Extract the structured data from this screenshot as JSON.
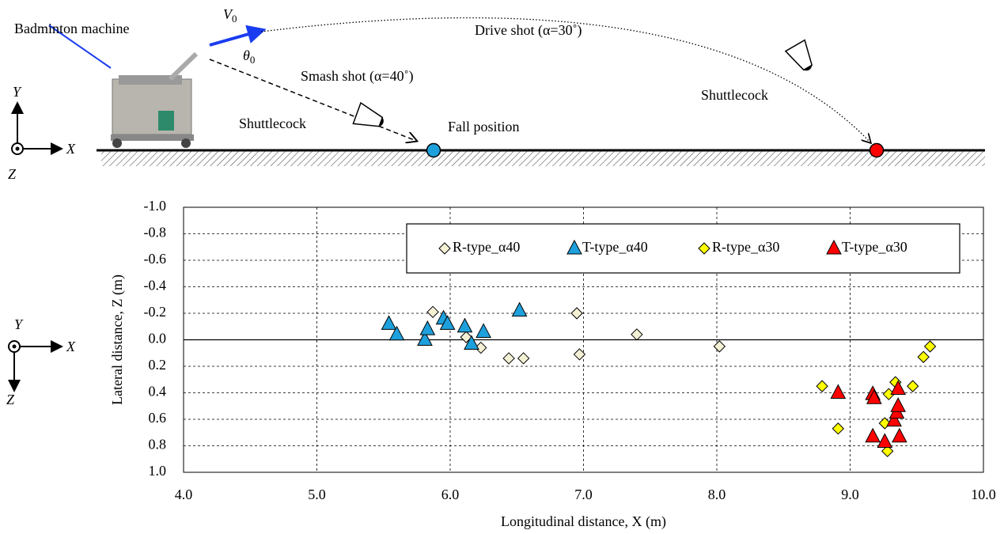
{
  "diagram": {
    "machine_label": "Badminton machine",
    "velocity": {
      "symbol": "V",
      "subscript": "0"
    },
    "angle": {
      "symbol": "θ",
      "subscript": "0"
    },
    "drive_shot": "Drive shot (α=30˚)",
    "smash_shot": "Smash shot (α=40˚)",
    "shuttlecock_near": "Shuttlecock",
    "shuttlecock_far": "Shuttlecock",
    "fall_position": "Fall position",
    "side_axes": {
      "y": "Y",
      "x": "X",
      "z": "Z"
    },
    "top_axes": {
      "y": "Y",
      "x": "X",
      "z": "Z"
    }
  },
  "chart_data": {
    "type": "scatter",
    "xlabel": "Longitudinal distance, X (m)",
    "ylabel": "Lateral distance, Z (m)",
    "xlim": [
      4.0,
      10.0
    ],
    "ylim": [
      -1.0,
      1.0
    ],
    "y_inverted": true,
    "grid": true,
    "legend": "top-right",
    "xticks": [
      {
        "value": 4,
        "label": "4.0"
      },
      {
        "value": 5,
        "label": "5.0"
      },
      {
        "value": 6,
        "label": "6.0"
      },
      {
        "value": 7,
        "label": "7.0"
      },
      {
        "value": 8,
        "label": "8.0"
      },
      {
        "value": 9,
        "label": "9.0"
      },
      {
        "value": 10,
        "label": "10.0"
      }
    ],
    "yticks": [
      {
        "value": -1,
        "label": "-1.0"
      },
      {
        "value": -0.8,
        "label": "-0.8"
      },
      {
        "value": -0.6,
        "label": "-0.6"
      },
      {
        "value": -0.4,
        "label": "-0.4"
      },
      {
        "value": -0.2,
        "label": "-0.2"
      },
      {
        "value": 0,
        "label": "0.0"
      },
      {
        "value": 0.2,
        "label": "0.2"
      },
      {
        "value": 0.4,
        "label": "0.4"
      },
      {
        "value": 0.6,
        "label": "0.6"
      },
      {
        "value": 0.8,
        "label": "0.8"
      },
      {
        "value": 1,
        "label": "1.0"
      }
    ],
    "series": [
      {
        "name": "R-type_α40",
        "color": "#f3f0d4",
        "marker": "diamond",
        "x": [
          5.87,
          6.12,
          6.23,
          6.44,
          6.55,
          6.95,
          6.97,
          7.4,
          8.02
        ],
        "y": [
          -0.21,
          -0.02,
          0.06,
          0.14,
          0.14,
          -0.2,
          0.11,
          -0.04,
          0.05
        ]
      },
      {
        "name": "T-type_α40",
        "color": "#1ea0dc",
        "marker": "triangle",
        "x": [
          5.54,
          5.6,
          5.81,
          5.83,
          5.95,
          5.98,
          6.11,
          6.16,
          6.25,
          6.52
        ],
        "y": [
          -0.12,
          -0.04,
          0.0,
          -0.08,
          -0.16,
          -0.12,
          -0.1,
          0.03,
          -0.06,
          -0.22
        ]
      },
      {
        "name": "R-type_α30",
        "color": "#ffff00",
        "marker": "diamond",
        "x": [
          8.79,
          8.91,
          9.26,
          9.28,
          9.29,
          9.34,
          9.47,
          9.55,
          9.6
        ],
        "y": [
          0.35,
          0.67,
          0.63,
          0.84,
          0.41,
          0.32,
          0.35,
          0.13,
          0.05
        ]
      },
      {
        "name": "T-type_α30",
        "color": "#ff0000",
        "marker": "triangle",
        "x": [
          8.91,
          9.17,
          9.18,
          9.17,
          9.26,
          9.33,
          9.35,
          9.36,
          9.36,
          9.37
        ],
        "y": [
          0.4,
          0.41,
          0.44,
          0.73,
          0.77,
          0.61,
          0.55,
          0.5,
          0.37,
          0.73
        ]
      }
    ]
  }
}
